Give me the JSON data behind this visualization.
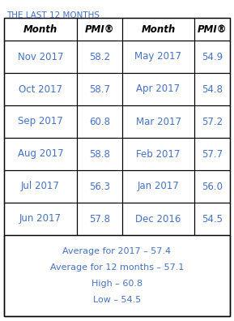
{
  "title": "THE LAST 12 MONTHS",
  "title_color": "#4472C4",
  "header": [
    "Month",
    "PMI®",
    "Month",
    "PMI®"
  ],
  "left_months": [
    "Nov 2017",
    "Oct 2017",
    "Sep 2017",
    "Aug 2017",
    "Jul 2017",
    "Jun 2017"
  ],
  "left_pmi": [
    "58.2",
    "58.7",
    "60.8",
    "58.8",
    "56.3",
    "57.8"
  ],
  "right_months": [
    "May 2017",
    "Apr 2017",
    "Mar 2017",
    "Feb 2017",
    "Jan 2017",
    "Dec 2016"
  ],
  "right_pmi": [
    "54.9",
    "54.8",
    "57.2",
    "57.7",
    "56.0",
    "54.5"
  ],
  "footer_lines": [
    "Average for 2017 – 57.4",
    "Average for 12 months – 57.1",
    "High – 60.8",
    "Low – 54.5"
  ],
  "data_color": "#4472C4",
  "header_color": "#000000",
  "footer_color": "#4472C4",
  "bg_color": "#FFFFFF",
  "title_fontsize": 7.5,
  "header_fontsize": 8.5,
  "data_fontsize": 8.5,
  "footer_fontsize": 8.0
}
